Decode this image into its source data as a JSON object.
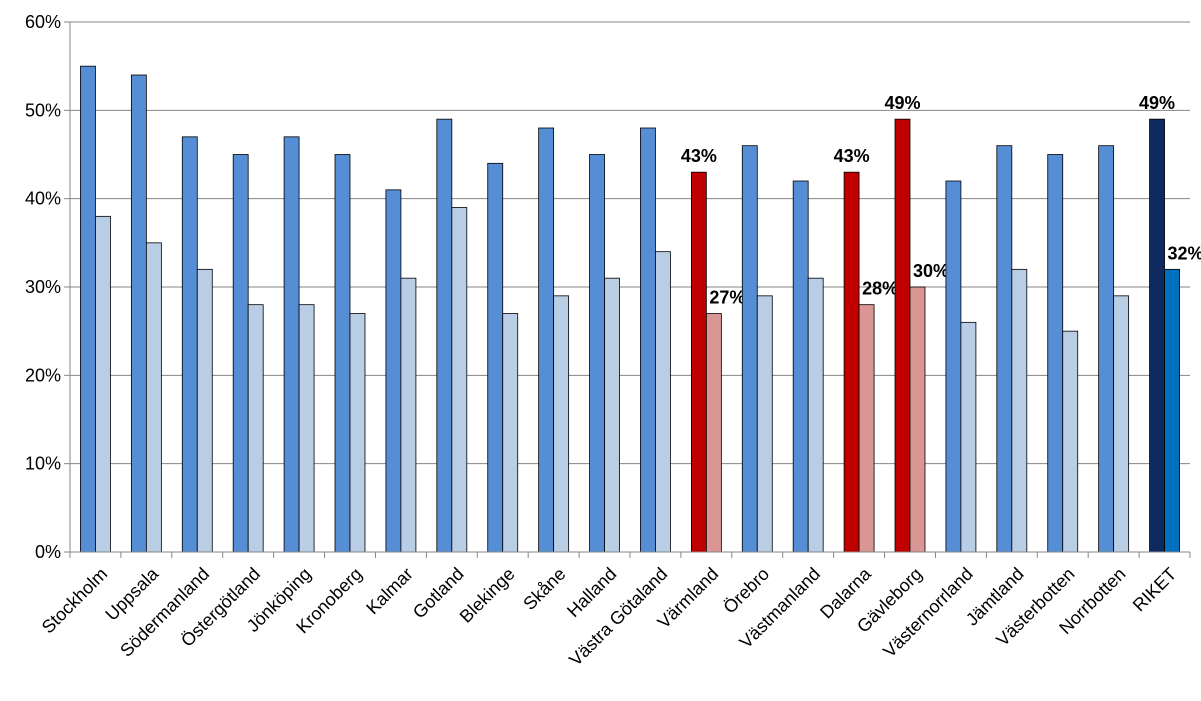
{
  "chart_data": {
    "type": "bar",
    "categories": [
      "Stockholm",
      "Uppsala",
      "Södermanland",
      "Östergötland",
      "Jönköping",
      "Kronoberg",
      "Kalmar",
      "Gotland",
      "Blekinge",
      "Skåne",
      "Halland",
      "Västra Götaland",
      "Värmland",
      "Örebro",
      "Västmanland",
      "Dalarna",
      "Gävleborg",
      "Västernorrland",
      "Jämtland",
      "Västerbotten",
      "Norrbotten",
      "RIKET"
    ],
    "series": [
      {
        "values": [
          55,
          54,
          47,
          45,
          47,
          45,
          41,
          49,
          44,
          48,
          45,
          48,
          43,
          46,
          42,
          43,
          49,
          42,
          46,
          45,
          46,
          49
        ],
        "value_labels": [
          null,
          null,
          null,
          null,
          null,
          null,
          null,
          null,
          null,
          null,
          null,
          null,
          "43%",
          null,
          null,
          "43%",
          "49%",
          null,
          null,
          null,
          null,
          "49%"
        ],
        "colors": [
          "#558ed5",
          "#558ed5",
          "#558ed5",
          "#558ed5",
          "#558ed5",
          "#558ed5",
          "#558ed5",
          "#558ed5",
          "#558ed5",
          "#558ed5",
          "#558ed5",
          "#558ed5",
          "#c00000",
          "#558ed5",
          "#558ed5",
          "#c00000",
          "#c00000",
          "#558ed5",
          "#558ed5",
          "#558ed5",
          "#558ed5",
          "#0f2a5f"
        ]
      },
      {
        "values": [
          38,
          35,
          32,
          28,
          28,
          27,
          31,
          39,
          27,
          29,
          31,
          34,
          27,
          29,
          31,
          28,
          30,
          26,
          32,
          25,
          29,
          32
        ],
        "value_labels": [
          null,
          null,
          null,
          null,
          null,
          null,
          null,
          null,
          null,
          null,
          null,
          null,
          "27%",
          null,
          null,
          "28%",
          "30%",
          null,
          null,
          null,
          null,
          "32%"
        ],
        "colors": [
          "#b9cde5",
          "#b9cde5",
          "#b9cde5",
          "#b9cde5",
          "#b9cde5",
          "#b9cde5",
          "#b9cde5",
          "#b9cde5",
          "#b9cde5",
          "#b9cde5",
          "#b9cde5",
          "#b9cde5",
          "#d99694",
          "#b9cde5",
          "#b9cde5",
          "#d99694",
          "#d99694",
          "#b9cde5",
          "#b9cde5",
          "#b9cde5",
          "#b9cde5",
          "#0070c0"
        ]
      }
    ],
    "ylim": [
      0,
      60
    ],
    "yticks": [
      {
        "value": 0,
        "label": "0%"
      },
      {
        "value": 10,
        "label": "10%"
      },
      {
        "value": 20,
        "label": "20%"
      },
      {
        "value": 30,
        "label": "30%"
      },
      {
        "value": 40,
        "label": "40%"
      },
      {
        "value": 50,
        "label": "50%"
      },
      {
        "value": 60,
        "label": "60%"
      }
    ],
    "grid": true
  }
}
